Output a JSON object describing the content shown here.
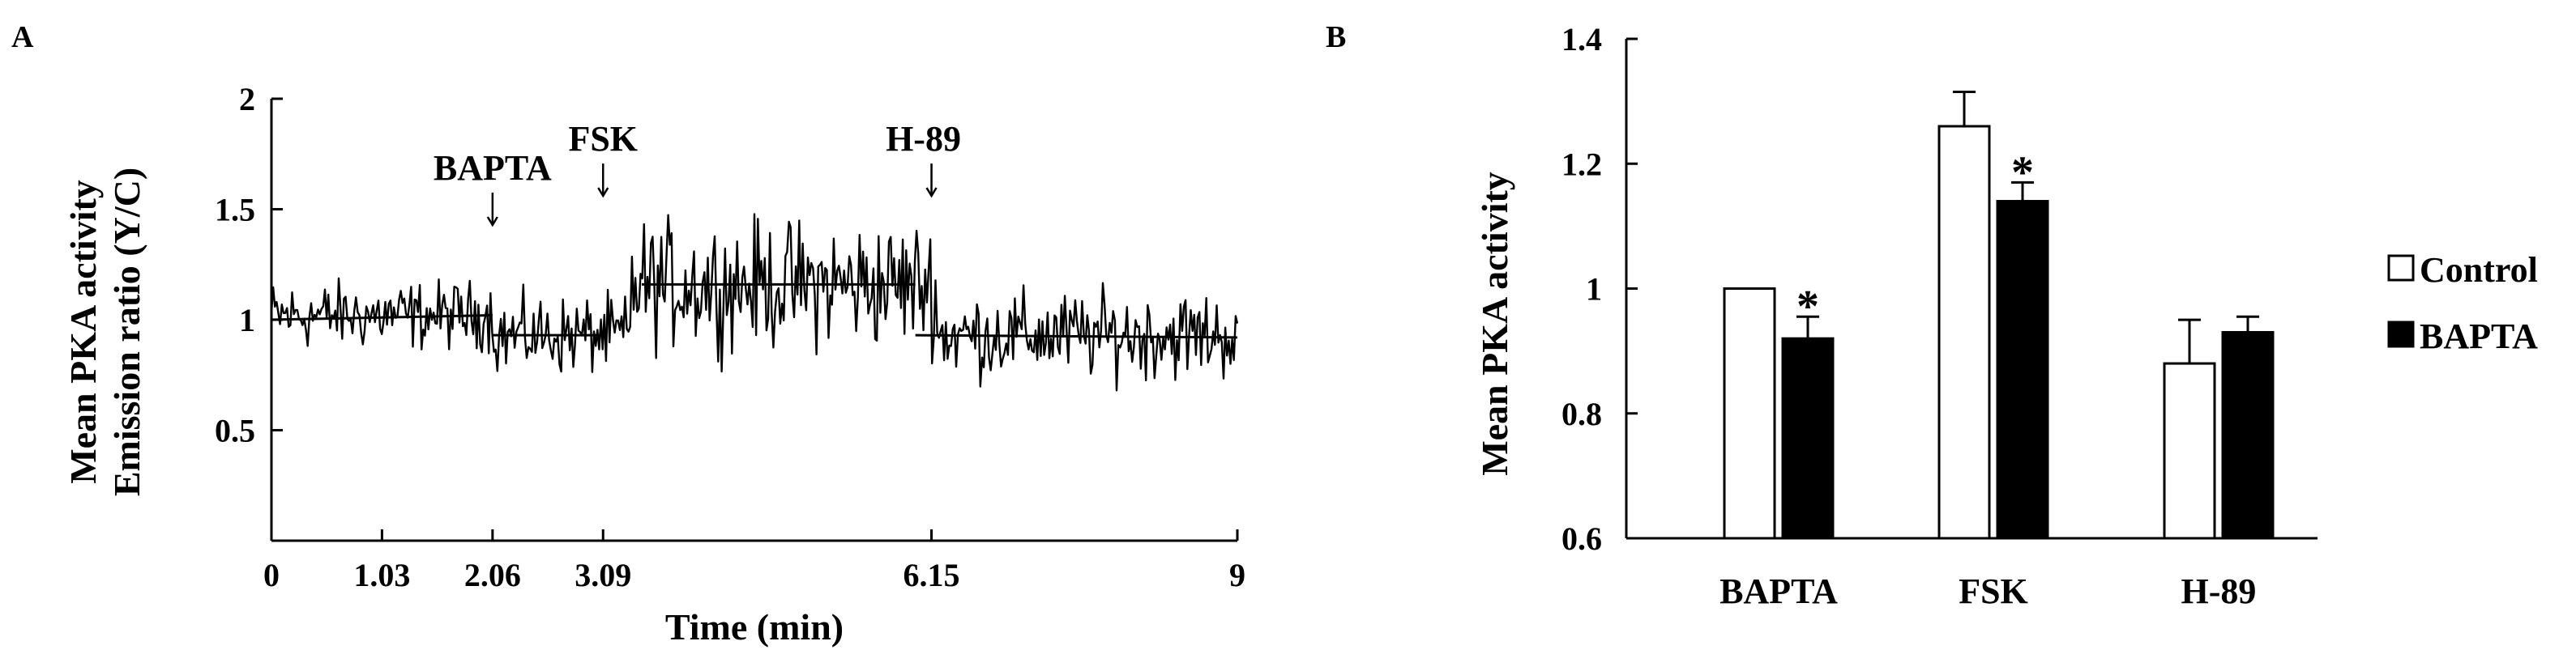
{
  "chart_data": [
    {
      "panel": "A",
      "type": "line",
      "xlabel": "Time (min)",
      "ylabel_lines": [
        "Mean PKA activity",
        "Emission ratio (Y/C)"
      ],
      "x_ticks": [
        "0",
        "1.03",
        "2.06",
        "3.09",
        "6.15",
        "9"
      ],
      "x_tick_values": [
        0,
        1.03,
        2.06,
        3.09,
        6.15,
        9
      ],
      "y_ticks": [
        "0.5",
        "1",
        "1.5",
        "2"
      ],
      "y_tick_values": [
        0.5,
        1,
        1.5,
        2
      ],
      "xlim": [
        0,
        9
      ],
      "ylim": [
        0,
        2
      ],
      "annotations": [
        {
          "text": "BAPTA",
          "x": 2.06
        },
        {
          "text": "FSK",
          "x": 3.09
        },
        {
          "text": "H-89",
          "x": 6.15
        }
      ],
      "trend_segments": [
        {
          "x": [
            0,
            2.06
          ],
          "y": [
            1.0,
            1.02
          ]
        },
        {
          "x": [
            2.06,
            3.09
          ],
          "y": [
            0.93,
            0.93
          ]
        },
        {
          "x": [
            3.45,
            6.0
          ],
          "y": [
            1.16,
            1.16
          ]
        },
        {
          "x": [
            6.0,
            9.0
          ],
          "y": [
            0.93,
            0.92
          ]
        }
      ],
      "trace_phases": [
        {
          "x_start": 0,
          "x_end": 2.06,
          "mean": 1.02,
          "noise": 0.14
        },
        {
          "x_start": 2.06,
          "x_end": 3.35,
          "mean": 0.93,
          "noise": 0.16
        },
        {
          "x_start": 3.35,
          "x_end": 6.2,
          "mean": 1.16,
          "noise": 0.26
        },
        {
          "x_start": 6.2,
          "x_end": 9.0,
          "mean": 0.93,
          "noise": 0.18
        }
      ]
    },
    {
      "panel": "B",
      "type": "bar",
      "ylabel": "Mean PKA activity",
      "categories": [
        "BAPTA",
        "FSK",
        "H-89"
      ],
      "series": [
        {
          "name": "Control",
          "values": [
            1.0,
            1.26,
            0.88
          ],
          "errors": [
            0,
            0.055,
            0.07
          ]
        },
        {
          "name": "BAPTA",
          "values": [
            0.92,
            1.14,
            0.93
          ],
          "errors": [
            0.035,
            0.03,
            0.025
          ]
        }
      ],
      "significance": [
        "*",
        "*",
        ""
      ],
      "y_ticks": [
        "0.6",
        "0.8",
        "1",
        "1.2",
        "1.4"
      ],
      "y_tick_values": [
        0.6,
        0.8,
        1,
        1.2,
        1.4
      ],
      "ylim": [
        0.6,
        1.4
      ],
      "legend_position": "right",
      "colors": {
        "Control": "#ffffff",
        "BAPTA": "#000000"
      }
    }
  ]
}
